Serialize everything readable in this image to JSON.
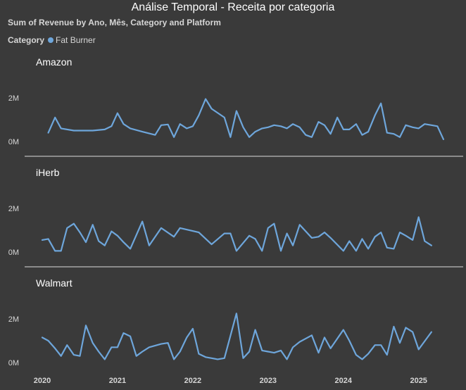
{
  "chart_data": {
    "type": "line",
    "title": "Análise Temporal - Receita por categoria",
    "subtitle": "Sum of Revenue by Ano, Mês, Category and Platform",
    "legend": {
      "title": "Category",
      "entries": [
        {
          "name": "Fat Burner",
          "color": "#6ea6db"
        }
      ],
      "placement": "top-left"
    },
    "x_ticks": [
      "2020",
      "2021",
      "2022",
      "2023",
      "2024",
      "2025"
    ],
    "x_range": [
      2020,
      2025.33
    ],
    "y_ticks": [
      {
        "value": 0,
        "label": "0M"
      },
      {
        "value": 2000000,
        "label": "2M"
      }
    ],
    "grid": false,
    "panels": [
      {
        "name": "Amazon",
        "ylim": [
          -200000,
          2800000
        ],
        "series": [
          {
            "name": "Fat Burner",
            "points": [
              [
                2020.08,
                400000
              ],
              [
                2020.17,
                1100000
              ],
              [
                2020.25,
                600000
              ],
              [
                2020.42,
                500000
              ],
              [
                2020.58,
                500000
              ],
              [
                2020.67,
                500000
              ],
              [
                2020.83,
                550000
              ],
              [
                2020.92,
                700000
              ],
              [
                2021.0,
                1300000
              ],
              [
                2021.08,
                800000
              ],
              [
                2021.17,
                600000
              ],
              [
                2021.33,
                450000
              ],
              [
                2021.5,
                300000
              ],
              [
                2021.58,
                750000
              ],
              [
                2021.67,
                780000
              ],
              [
                2021.75,
                200000
              ],
              [
                2021.83,
                800000
              ],
              [
                2021.92,
                600000
              ],
              [
                2022.0,
                700000
              ],
              [
                2022.08,
                1200000
              ],
              [
                2022.17,
                1950000
              ],
              [
                2022.25,
                1500000
              ],
              [
                2022.42,
                1100000
              ],
              [
                2022.5,
                200000
              ],
              [
                2022.58,
                1400000
              ],
              [
                2022.67,
                650000
              ],
              [
                2022.75,
                200000
              ],
              [
                2022.83,
                450000
              ],
              [
                2022.92,
                600000
              ],
              [
                2023.0,
                650000
              ],
              [
                2023.08,
                750000
              ],
              [
                2023.17,
                700000
              ],
              [
                2023.25,
                600000
              ],
              [
                2023.33,
                800000
              ],
              [
                2023.42,
                650000
              ],
              [
                2023.5,
                300000
              ],
              [
                2023.58,
                200000
              ],
              [
                2023.67,
                900000
              ],
              [
                2023.75,
                750000
              ],
              [
                2023.83,
                350000
              ],
              [
                2023.92,
                1100000
              ],
              [
                2024.0,
                550000
              ],
              [
                2024.08,
                550000
              ],
              [
                2024.17,
                800000
              ],
              [
                2024.25,
                300000
              ],
              [
                2024.33,
                450000
              ],
              [
                2024.42,
                1200000
              ],
              [
                2024.5,
                1750000
              ],
              [
                2024.58,
                400000
              ],
              [
                2024.67,
                350000
              ],
              [
                2024.75,
                200000
              ],
              [
                2024.83,
                750000
              ],
              [
                2024.92,
                650000
              ],
              [
                2025.0,
                600000
              ],
              [
                2025.08,
                800000
              ],
              [
                2025.17,
                750000
              ],
              [
                2025.25,
                700000
              ],
              [
                2025.33,
                100000
              ]
            ]
          }
        ]
      },
      {
        "name": "iHerb",
        "ylim": [
          -200000,
          2800000
        ],
        "series": [
          {
            "name": "Fat Burner",
            "points": [
              [
                2020.0,
                550000
              ],
              [
                2020.08,
                600000
              ],
              [
                2020.17,
                50000
              ],
              [
                2020.25,
                50000
              ],
              [
                2020.33,
                1100000
              ],
              [
                2020.42,
                1300000
              ],
              [
                2020.5,
                900000
              ],
              [
                2020.58,
                450000
              ],
              [
                2020.67,
                1250000
              ],
              [
                2020.75,
                500000
              ],
              [
                2020.83,
                300000
              ],
              [
                2020.92,
                950000
              ],
              [
                2021.0,
                750000
              ],
              [
                2021.08,
                450000
              ],
              [
                2021.17,
                150000
              ],
              [
                2021.33,
                1400000
              ],
              [
                2021.42,
                300000
              ],
              [
                2021.58,
                1100000
              ],
              [
                2021.75,
                700000
              ],
              [
                2021.83,
                1100000
              ],
              [
                2022.08,
                900000
              ],
              [
                2022.25,
                350000
              ],
              [
                2022.42,
                850000
              ],
              [
                2022.5,
                850000
              ],
              [
                2022.58,
                50000
              ],
              [
                2022.75,
                750000
              ],
              [
                2022.83,
                600000
              ],
              [
                2022.92,
                50000
              ],
              [
                2023.0,
                1100000
              ],
              [
                2023.08,
                1300000
              ],
              [
                2023.17,
                50000
              ],
              [
                2023.25,
                850000
              ],
              [
                2023.33,
                300000
              ],
              [
                2023.42,
                1250000
              ],
              [
                2023.58,
                650000
              ],
              [
                2023.67,
                700000
              ],
              [
                2023.75,
                900000
              ],
              [
                2023.83,
                650000
              ],
              [
                2024.0,
                50000
              ],
              [
                2024.08,
                500000
              ],
              [
                2024.17,
                50000
              ],
              [
                2024.25,
                600000
              ],
              [
                2024.33,
                150000
              ],
              [
                2024.42,
                700000
              ],
              [
                2024.5,
                900000
              ],
              [
                2024.58,
                200000
              ],
              [
                2024.67,
                150000
              ],
              [
                2024.75,
                900000
              ],
              [
                2024.83,
                750000
              ],
              [
                2024.92,
                550000
              ],
              [
                2025.0,
                1600000
              ],
              [
                2025.08,
                500000
              ],
              [
                2025.17,
                300000
              ]
            ]
          }
        ]
      },
      {
        "name": "Walmart",
        "ylim": [
          -200000,
          2800000
        ],
        "series": [
          {
            "name": "Fat Burner",
            "points": [
              [
                2020.0,
                1150000
              ],
              [
                2020.08,
                1000000
              ],
              [
                2020.17,
                650000
              ],
              [
                2020.25,
                300000
              ],
              [
                2020.33,
                800000
              ],
              [
                2020.42,
                350000
              ],
              [
                2020.5,
                300000
              ],
              [
                2020.58,
                1700000
              ],
              [
                2020.67,
                900000
              ],
              [
                2020.75,
                500000
              ],
              [
                2020.83,
                150000
              ],
              [
                2020.92,
                700000
              ],
              [
                2021.0,
                700000
              ],
              [
                2021.08,
                1350000
              ],
              [
                2021.17,
                1200000
              ],
              [
                2021.25,
                300000
              ],
              [
                2021.33,
                500000
              ],
              [
                2021.42,
                700000
              ],
              [
                2021.58,
                850000
              ],
              [
                2021.67,
                900000
              ],
              [
                2021.75,
                150000
              ],
              [
                2021.83,
                500000
              ],
              [
                2021.92,
                1150000
              ],
              [
                2022.0,
                1550000
              ],
              [
                2022.08,
                400000
              ],
              [
                2022.17,
                250000
              ],
              [
                2022.25,
                200000
              ],
              [
                2022.33,
                150000
              ],
              [
                2022.42,
                200000
              ],
              [
                2022.58,
                2250000
              ],
              [
                2022.67,
                200000
              ],
              [
                2022.75,
                500000
              ],
              [
                2022.83,
                1500000
              ],
              [
                2022.92,
                550000
              ],
              [
                2023.0,
                500000
              ],
              [
                2023.08,
                450000
              ],
              [
                2023.17,
                550000
              ],
              [
                2023.25,
                150000
              ],
              [
                2023.33,
                700000
              ],
              [
                2023.42,
                950000
              ],
              [
                2023.58,
                1250000
              ],
              [
                2023.67,
                450000
              ],
              [
                2023.75,
                1150000
              ],
              [
                2023.83,
                650000
              ],
              [
                2024.0,
                1500000
              ],
              [
                2024.08,
                1000000
              ],
              [
                2024.17,
                350000
              ],
              [
                2024.25,
                150000
              ],
              [
                2024.33,
                400000
              ],
              [
                2024.42,
                800000
              ],
              [
                2024.5,
                800000
              ],
              [
                2024.58,
                350000
              ],
              [
                2024.67,
                1650000
              ],
              [
                2024.75,
                900000
              ],
              [
                2024.83,
                1600000
              ],
              [
                2024.92,
                1400000
              ],
              [
                2025.0,
                600000
              ],
              [
                2025.17,
                1400000
              ]
            ]
          }
        ]
      }
    ]
  }
}
